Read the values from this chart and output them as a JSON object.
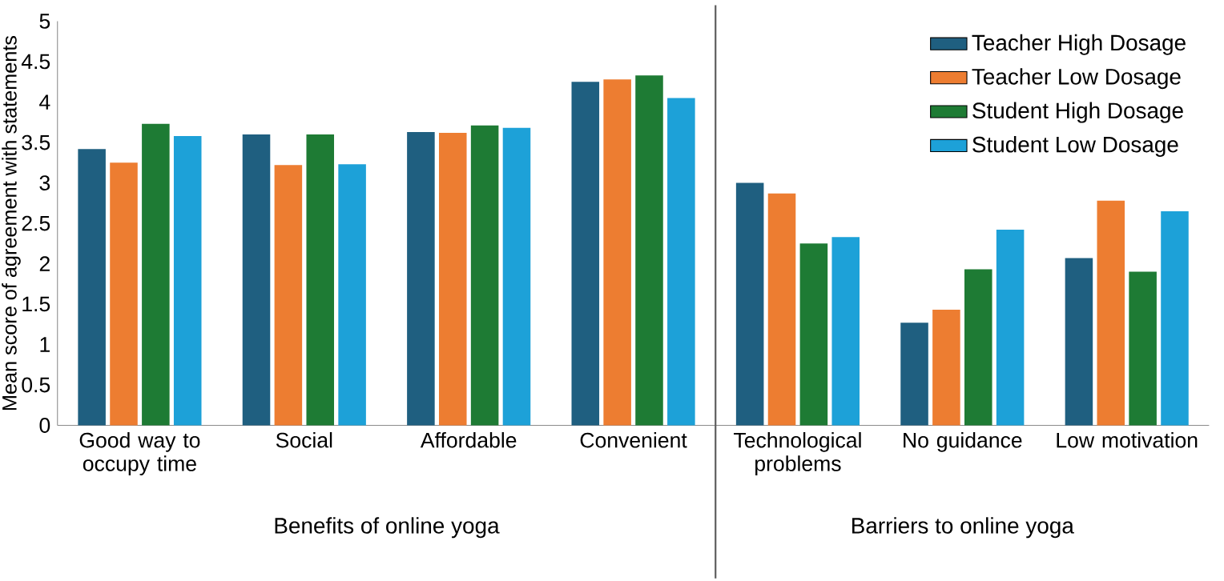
{
  "chart_data": {
    "type": "bar",
    "ylabel": "Mean score of agreement with statements",
    "categories": [
      "Good way to occupy time",
      "Social",
      "Affordable",
      "Convenient",
      "Technological problems",
      "No guidance",
      "Low motivation"
    ],
    "series": [
      {
        "name": "Teacher High Dosage",
        "color": "#1f5f80",
        "values": [
          3.42,
          3.6,
          3.63,
          4.25,
          3.0,
          1.27,
          2.07
        ]
      },
      {
        "name": "Teacher Low Dosage",
        "color": "#ed7d31",
        "values": [
          3.25,
          3.22,
          3.62,
          4.28,
          2.87,
          1.43,
          2.78
        ]
      },
      {
        "name": "Student High Dosage",
        "color": "#1e7b34",
        "values": [
          3.73,
          3.6,
          3.71,
          4.33,
          2.25,
          1.93,
          1.9
        ]
      },
      {
        "name": "Student Low Dosage",
        "color": "#1da1d8",
        "values": [
          3.58,
          3.23,
          3.68,
          4.05,
          2.33,
          2.42,
          2.65
        ]
      }
    ],
    "ylim": [
      0,
      5
    ],
    "yticks": [
      0,
      0.5,
      1,
      1.5,
      2,
      2.5,
      3,
      3.5,
      4,
      4.5,
      5
    ],
    "annotations": [
      "Benefits of online yoga",
      "Barriers to online yoga"
    ],
    "legend": "top right",
    "grid": false
  }
}
